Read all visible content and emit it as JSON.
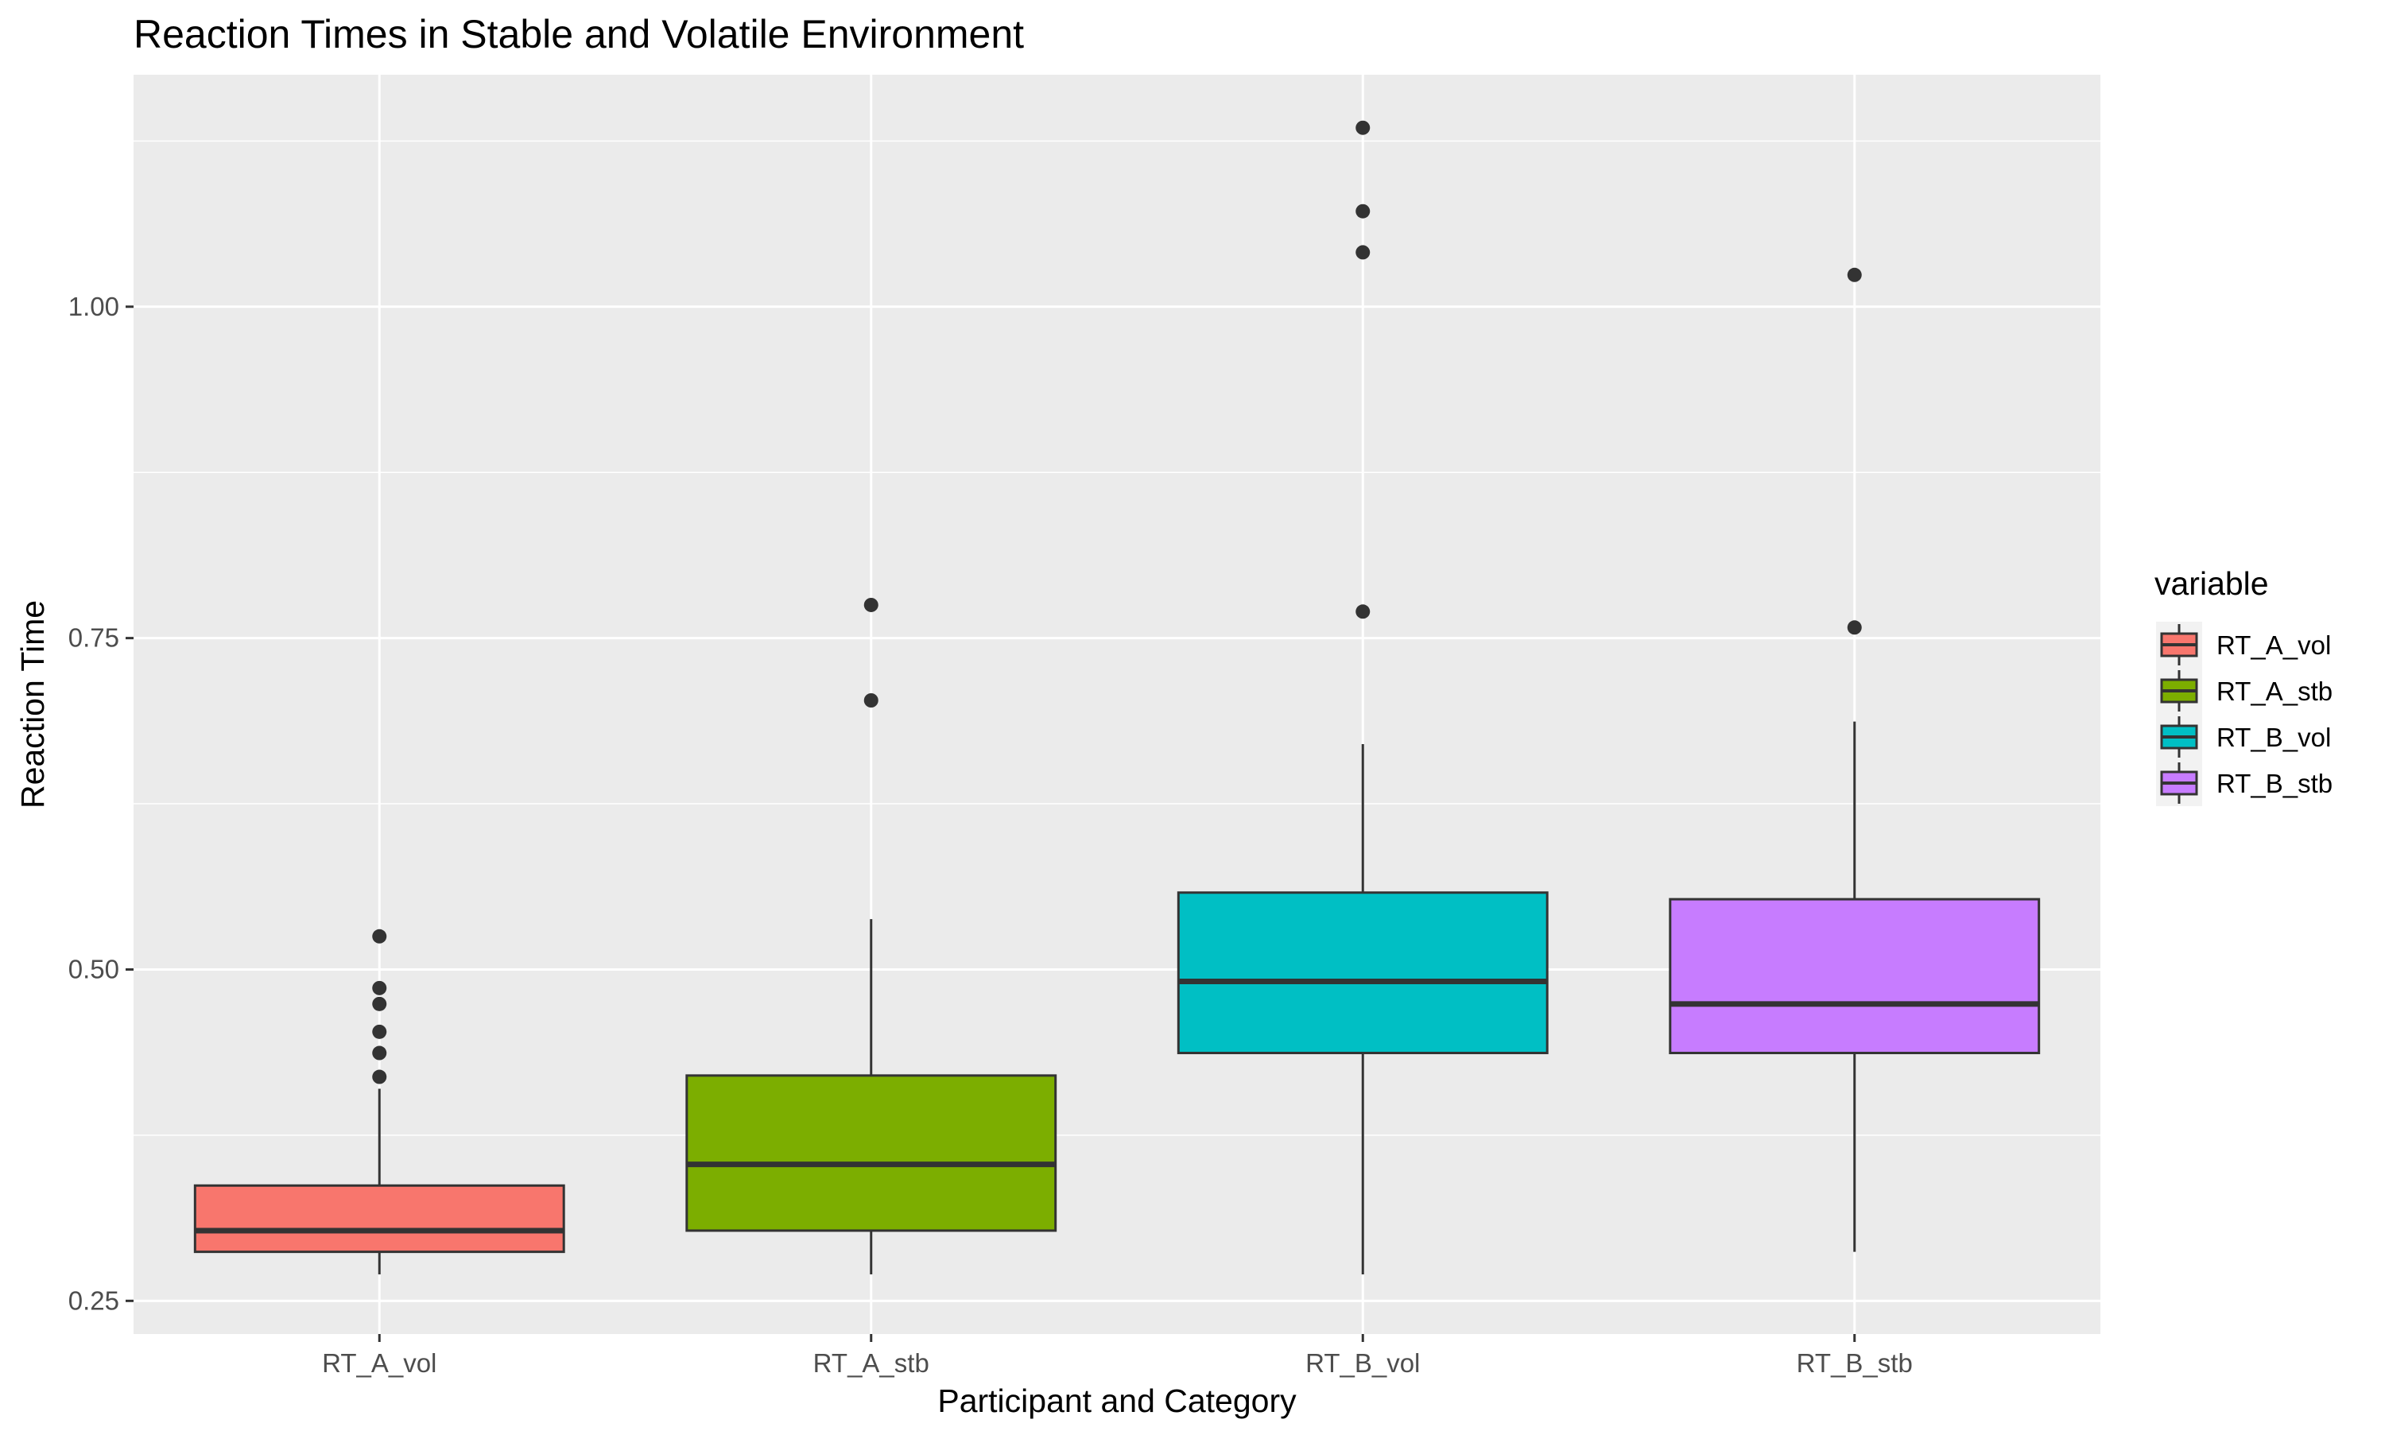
{
  "chart_data": {
    "type": "boxplot",
    "title": "Reaction Times in Stable and Volatile Environment",
    "xlabel": "Participant and Category",
    "ylabel": "Reaction Time",
    "ylim": [
      0.225,
      1.175
    ],
    "yticks": [
      0.25,
      0.5,
      0.75,
      1.0
    ],
    "ytick_labels": [
      "0.25",
      "0.50",
      "0.75",
      "1.00"
    ],
    "grid": true,
    "legend": {
      "title": "variable",
      "position": "right"
    },
    "categories": [
      "RT_A_vol",
      "RT_A_stb",
      "RT_B_vol",
      "RT_B_stb"
    ],
    "series": [
      {
        "name": "RT_A_vol",
        "color": "#F8766D",
        "whisker_low": 0.27,
        "q1": 0.287,
        "median": 0.303,
        "q3": 0.337,
        "whisker_high": 0.41,
        "outliers": [
          0.419,
          0.437,
          0.453,
          0.474,
          0.486,
          0.525
        ]
      },
      {
        "name": "RT_A_stb",
        "color": "#7CAE00",
        "whisker_low": 0.27,
        "q1": 0.303,
        "median": 0.353,
        "q3": 0.42,
        "whisker_high": 0.538,
        "outliers": [
          0.703,
          0.775
        ]
      },
      {
        "name": "RT_B_vol",
        "color": "#00BFC4",
        "whisker_low": 0.27,
        "q1": 0.437,
        "median": 0.491,
        "q3": 0.558,
        "whisker_high": 0.67,
        "outliers": [
          0.77,
          1.041,
          1.072,
          1.135
        ]
      },
      {
        "name": "RT_B_stb",
        "color": "#C77CFF",
        "whisker_low": 0.287,
        "q1": 0.437,
        "median": 0.474,
        "q3": 0.553,
        "whisker_high": 0.687,
        "outliers": [
          0.758,
          1.024
        ]
      }
    ]
  }
}
